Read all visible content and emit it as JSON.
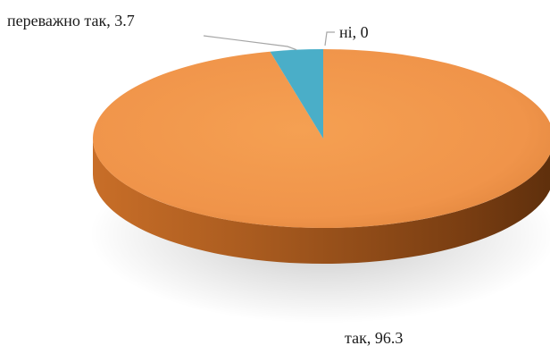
{
  "chart_data": {
    "type": "pie",
    "style": "3d",
    "slices": [
      {
        "label": "так",
        "value": 96.3,
        "text": "так, 96.3",
        "color": "#f0974a"
      },
      {
        "label": "переважно так",
        "value": 3.7,
        "text": "переважно так, 3.7",
        "color": "#4aaec8"
      },
      {
        "label": "ні",
        "value": 0,
        "text": "ні, 0",
        "color": "#9e9e9e"
      }
    ]
  }
}
